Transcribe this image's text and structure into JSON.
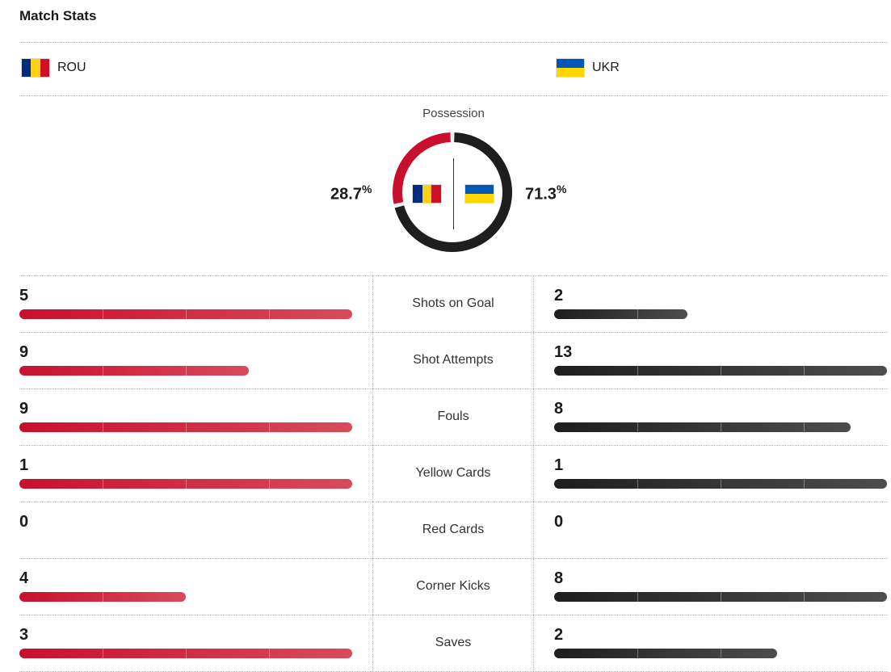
{
  "page_title": "Match Stats",
  "teams": {
    "home": {
      "abbr": "ROU",
      "flag": "romania-flag",
      "flag_colors": [
        "#002B7F",
        "#FCD116",
        "#CE1126"
      ]
    },
    "away": {
      "abbr": "UKR",
      "flag": "ukraine-flag",
      "flag_colors": [
        "#0057B7",
        "#FFD700"
      ]
    }
  },
  "possession": {
    "label": "Possession",
    "home_pct": 28.7,
    "away_pct": 71.3,
    "home_text": "28.7",
    "away_text": "71.3",
    "unit": "%"
  },
  "colors": {
    "home": "#c8102e",
    "away": "#1e1e1e"
  },
  "stats": [
    {
      "label": "Shots on Goal",
      "home": "5",
      "away": "2",
      "home_fill": 1.0,
      "away_fill": 0.4
    },
    {
      "label": "Shot Attempts",
      "home": "9",
      "away": "13",
      "home_fill": 0.69,
      "away_fill": 1.0
    },
    {
      "label": "Fouls",
      "home": "9",
      "away": "8",
      "home_fill": 1.0,
      "away_fill": 0.89
    },
    {
      "label": "Yellow Cards",
      "home": "1",
      "away": "1",
      "home_fill": 1.0,
      "away_fill": 1.0
    },
    {
      "label": "Red Cards",
      "home": "0",
      "away": "0",
      "home_fill": 0,
      "away_fill": 0
    },
    {
      "label": "Corner Kicks",
      "home": "4",
      "away": "8",
      "home_fill": 0.5,
      "away_fill": 1.0
    },
    {
      "label": "Saves",
      "home": "3",
      "away": "2",
      "home_fill": 1.0,
      "away_fill": 0.67
    }
  ]
}
